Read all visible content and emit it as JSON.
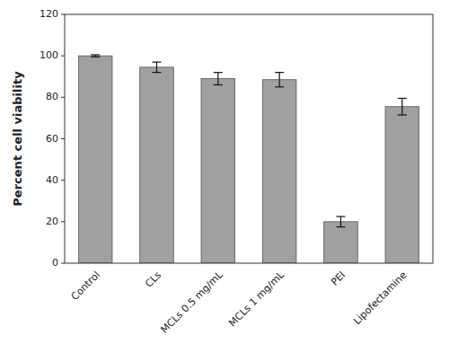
{
  "chart_data": {
    "type": "bar",
    "categories": [
      "Control",
      "CLs",
      "MCLs 0.5 mg/mL",
      "MCLs 1 mg/mL",
      "PEI",
      "Lipofectamine"
    ],
    "values": [
      100,
      94.5,
      89.0,
      88.5,
      20.0,
      75.5
    ],
    "errors": [
      0.5,
      2.5,
      3.0,
      3.5,
      2.5,
      4.0
    ],
    "color": "#a0a0a0",
    "ylabel": "Percent cell viability",
    "ylim": [
      0,
      120
    ],
    "yticks": [
      0,
      20,
      40,
      60,
      80,
      100,
      120
    ],
    "grid": false
  }
}
